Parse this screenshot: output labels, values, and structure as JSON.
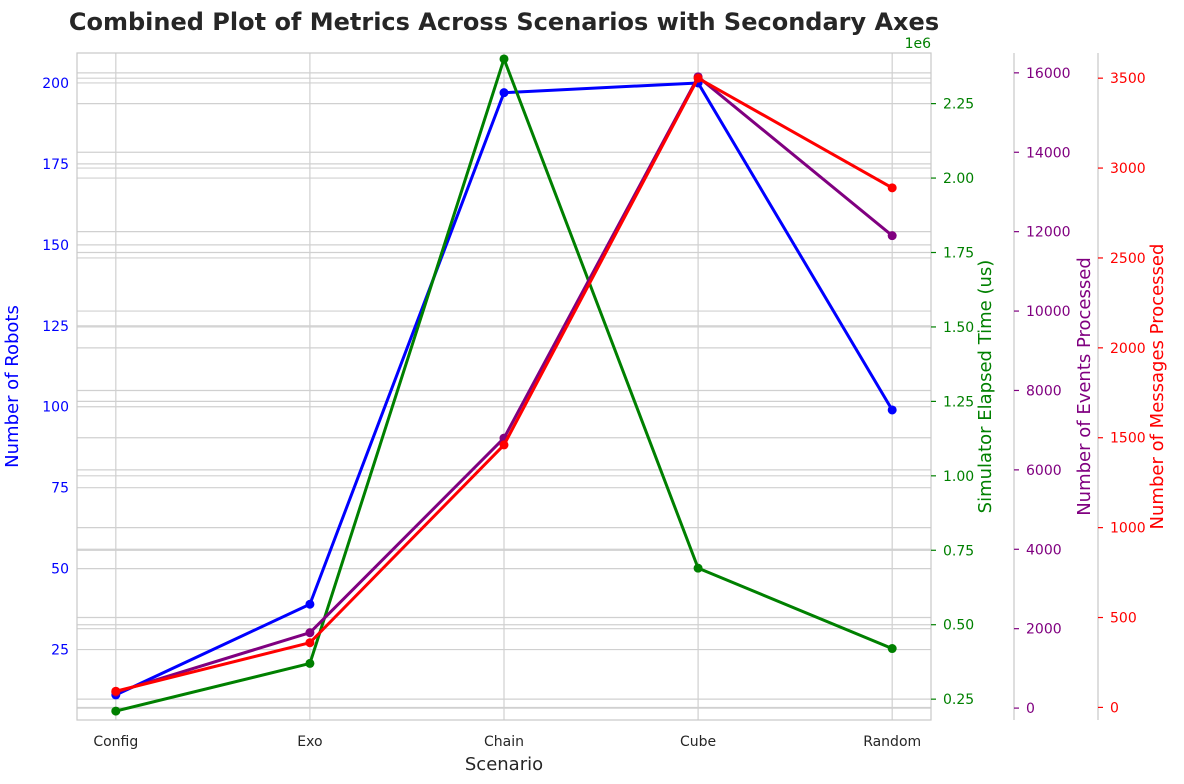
{
  "chart_data": {
    "type": "line",
    "title": "Combined Plot of Metrics Across Scenarios with Secondary Axes",
    "xlabel": "Scenario",
    "categories": [
      "Config",
      "Exo",
      "Chain",
      "Cube",
      "Random"
    ],
    "grid": true,
    "axes": [
      {
        "id": "robots",
        "position": "left",
        "label": "Number of Robots",
        "color": "#0000ff",
        "ylim": [
          3.25,
          209.25
        ],
        "ticks": [
          25,
          50,
          75,
          100,
          125,
          150,
          175,
          200
        ],
        "tick_labels": [
          "25",
          "50",
          "75",
          "100",
          "125",
          "150",
          "175",
          "200"
        ]
      },
      {
        "id": "time",
        "position": "right",
        "label": "Simulator Elapsed Time (us)",
        "color": "#008000",
        "ylim": [
          180000,
          2420000
        ],
        "offset_text": "1e6",
        "ticks": [
          250000,
          500000,
          750000,
          1000000,
          1250000,
          1500000,
          1750000,
          2000000,
          2250000
        ],
        "tick_labels": [
          "0.25",
          "0.50",
          "0.75",
          "1.00",
          "1.25",
          "1.50",
          "1.75",
          "2.00",
          "2.25"
        ]
      },
      {
        "id": "events",
        "position": "right-offset-1",
        "label": "Number of Events Processed",
        "color": "#800080",
        "ylim": [
          -300,
          16500
        ],
        "ticks": [
          0,
          2000,
          4000,
          6000,
          8000,
          10000,
          12000,
          14000,
          16000
        ],
        "tick_labels": [
          "0",
          "2000",
          "4000",
          "6000",
          "8000",
          "10000",
          "12000",
          "14000",
          "16000"
        ]
      },
      {
        "id": "messages",
        "position": "right-offset-2",
        "label": "Number of Messages Processed",
        "color": "#ff0000",
        "ylim": [
          -70,
          3640
        ],
        "ticks": [
          0,
          500,
          1000,
          1500,
          2000,
          2500,
          3000,
          3500
        ],
        "tick_labels": [
          "0",
          "500",
          "1000",
          "1500",
          "2000",
          "2500",
          "3000",
          "3500"
        ]
      }
    ],
    "series": [
      {
        "axis": "robots",
        "color": "#0000ff",
        "values": [
          11,
          39,
          197,
          200,
          99
        ]
      },
      {
        "axis": "time",
        "color": "#008000",
        "values": [
          210000,
          370000,
          2400000,
          690000,
          420000
        ]
      },
      {
        "axis": "events",
        "color": "#800080",
        "values": [
          400,
          1900,
          6800,
          15900,
          11900
        ]
      },
      {
        "axis": "messages",
        "color": "#ff0000",
        "values": [
          90,
          360,
          1460,
          3500,
          2890
        ]
      }
    ]
  }
}
